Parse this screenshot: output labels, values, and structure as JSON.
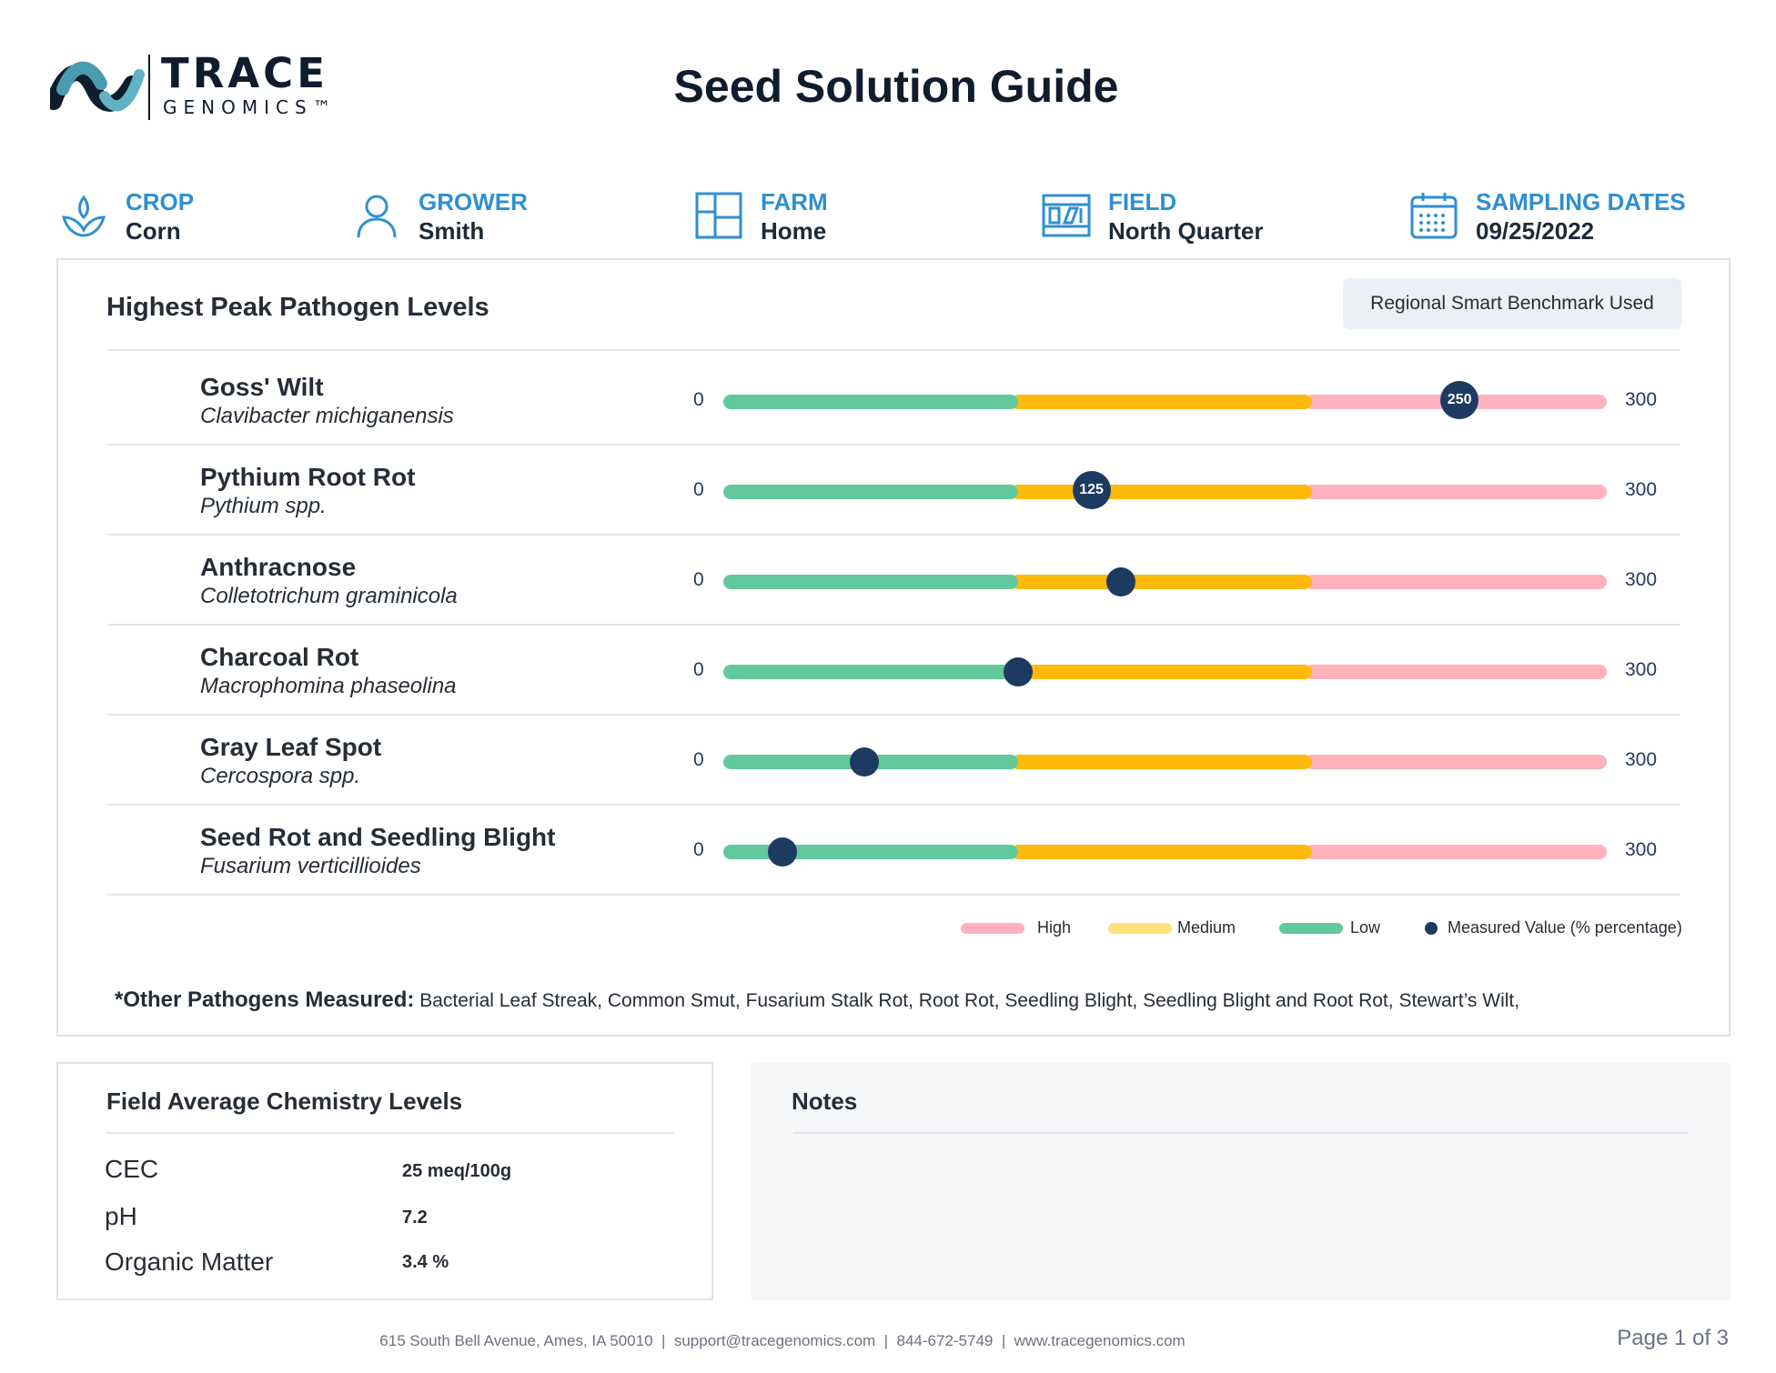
{
  "logo": {
    "word": "TRACE",
    "sub": "GENOMICS™"
  },
  "title": "Seed Solution Guide",
  "meta": {
    "crop": {
      "label": "CROP",
      "value": "Corn",
      "icon": "sprout-icon"
    },
    "grower": {
      "label": "GROWER",
      "value": "Smith",
      "icon": "person-icon"
    },
    "farm": {
      "label": "FARM",
      "value": "Home",
      "icon": "farm-layout-icon"
    },
    "field": {
      "label": "FIELD",
      "value": "North Quarter",
      "icon": "field-map-icon"
    },
    "dates": {
      "label": "SAMPLING DATES",
      "value": "09/25/2022",
      "icon": "calendar-icon"
    }
  },
  "pathogens": {
    "title": "Highest Peak Pathogen Levels",
    "benchmark": "Regional Smart Benchmark Used",
    "axis_min": "0",
    "axis_max": "300",
    "items": [
      {
        "name": "Goss' Wilt",
        "scientific": "Clavibacter michiganensis",
        "value": 250,
        "value_label": "250"
      },
      {
        "name": "Pythium Root Rot",
        "scientific": "Pythium spp.",
        "value": 125,
        "value_label": "125"
      },
      {
        "name": "Anthracnose",
        "scientific": "Colletotrichum graminicola",
        "value": 135
      },
      {
        "name": "Charcoal Rot",
        "scientific": "Macrophomina phaseolina",
        "value": 100
      },
      {
        "name": "Gray Leaf Spot",
        "scientific": "Cercospora spp.",
        "value": 48
      },
      {
        "name": "Seed Rot and Seedling Blight",
        "scientific": "Fusarium verticillioides",
        "value": 20
      }
    ],
    "legend": {
      "high": "High",
      "medium": "Medium",
      "low": "Low",
      "measured": "Measured Value (% percentage)"
    },
    "other_label": "*Other Pathogens Measured:",
    "other_list": "Bacterial Leaf Streak, Common Smut, Fusarium Stalk Rot, Root Rot, Seedling Blight, Seedling Blight and Root Rot, Stewart’s Wilt,"
  },
  "colors": {
    "low": "#62c99c",
    "medium": "#ffb90b",
    "high": "#ffb2bc",
    "marker": "#1d3a61",
    "accent": "#2f8fd0"
  },
  "chemistry": {
    "title": "Field Average Chemistry Levels",
    "rows": [
      {
        "label": "CEC",
        "value": "25 meq/100g"
      },
      {
        "label": "pH",
        "value": "7.2"
      },
      {
        "label": "Organic Matter",
        "value": "3.4 %"
      }
    ]
  },
  "notes": {
    "title": "Notes"
  },
  "footer": {
    "address": "615 South Bell Avenue, Ames, IA 50010  |  support@tracegenomics.com  |  844-672-5749  |  www.tracegenomics.com",
    "page": "Page 1 of 3"
  }
}
